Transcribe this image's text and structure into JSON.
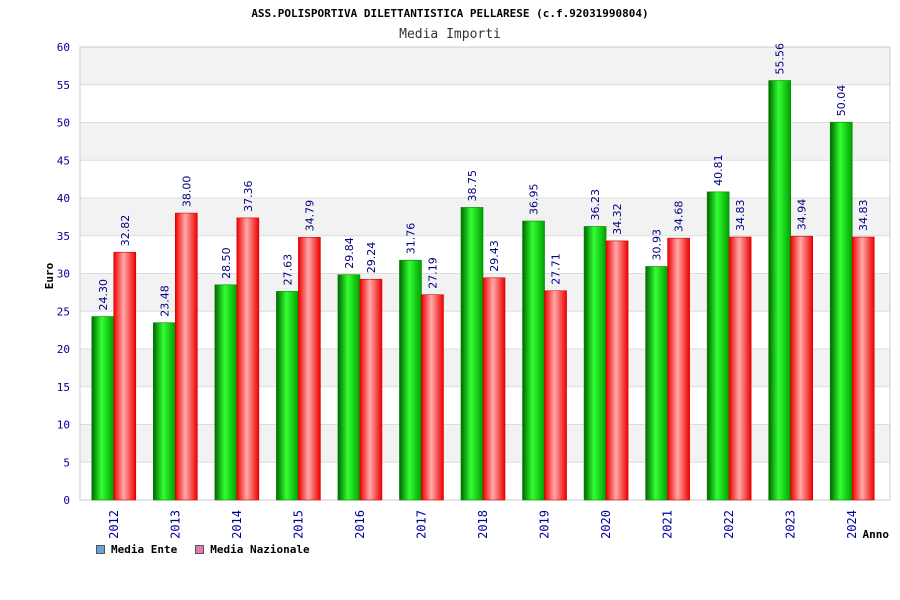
{
  "chart_data": {
    "type": "bar",
    "title": "ASS.POLISPORTIVA DILETTANTISTICA PELLARESE (c.f.92031990804)",
    "subtitle": "Media Importi",
    "xlabel": "Anno",
    "ylabel": "Euro",
    "ylim": [
      0,
      60
    ],
    "yticks": [
      "0",
      "5",
      "10",
      "15",
      "20",
      "25",
      "30",
      "35",
      "40",
      "45",
      "50",
      "55",
      "60"
    ],
    "categories": [
      "2012",
      "2013",
      "2014",
      "2015",
      "2016",
      "2017",
      "2018",
      "2019",
      "2020",
      "2021",
      "2022",
      "2023",
      "2024"
    ],
    "series": [
      {
        "name": "Media Ente",
        "values": [
          24.3,
          23.48,
          28.5,
          27.63,
          29.84,
          31.76,
          38.75,
          36.95,
          36.23,
          30.93,
          40.81,
          55.56,
          50.04
        ],
        "labels": [
          "24.30",
          "23.48",
          "28.50",
          "27.63",
          "29.84",
          "31.76",
          "38.75",
          "36.95",
          "36.23",
          "30.93",
          "40.81",
          "55.56",
          "50.04"
        ]
      },
      {
        "name": "Media Nazionale",
        "values": [
          32.82,
          38.0,
          37.36,
          34.79,
          29.24,
          27.19,
          29.43,
          27.71,
          34.32,
          34.68,
          34.83,
          34.94,
          34.83
        ],
        "labels": [
          "32.82",
          "38.00",
          "37.36",
          "34.79",
          "29.24",
          "27.19",
          "29.43",
          "27.71",
          "34.32",
          "34.68",
          "34.83",
          "34.94",
          "34.83"
        ]
      }
    ],
    "legend_position": "bottom-left"
  },
  "colors": {
    "ente_dark": "#00a000",
    "ente_light": "#66ff66",
    "nazionale_dark": "#ee0000",
    "nazionale_light": "#ffaaaa",
    "legend_ente": "#66a3e0",
    "legend_nazionale": "#e07ab0",
    "tick_text": "#000099",
    "band": "#f2f2f2"
  }
}
